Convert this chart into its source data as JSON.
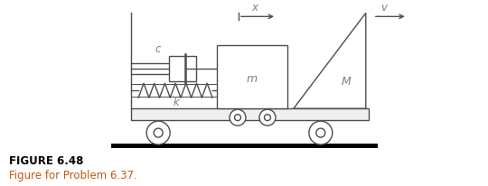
{
  "bg_color": "#ffffff",
  "line_color": "#4d4d4d",
  "label_color_italic": "#808080",
  "orange_color": "#c55a11",
  "figure_title": "FIGURE 6.48",
  "figure_subtitle": "Figure for Problem 6.37.",
  "title_fontsize": 8.5,
  "subtitle_fontsize": 8.5,
  "label_c": "c",
  "label_k": "k",
  "label_m": "m",
  "label_M": "M",
  "label_x": "x",
  "label_v": "v"
}
